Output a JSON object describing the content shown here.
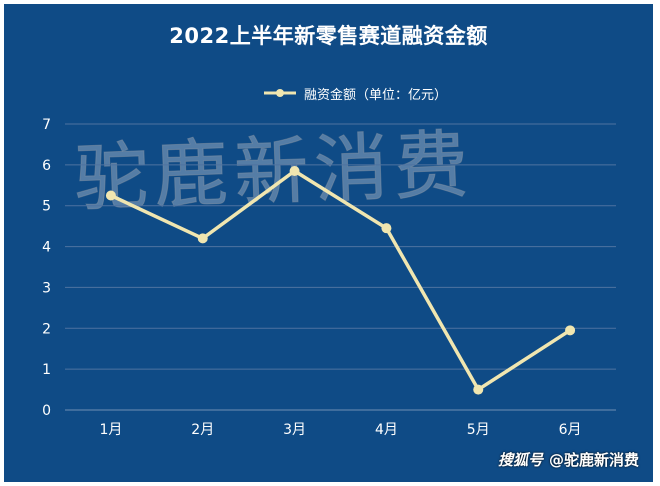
{
  "chart_data": {
    "type": "line",
    "title": "2022上半年新零售赛道融资金额",
    "categories": [
      "1月",
      "2月",
      "3月",
      "4月",
      "5月",
      "6月"
    ],
    "series": [
      {
        "name": "融资金额（单位：亿元）",
        "values": [
          5.25,
          4.2,
          5.85,
          4.45,
          0.5,
          1.95
        ]
      }
    ],
    "ylim": [
      0,
      7
    ],
    "yticks": [
      "0",
      "1",
      "2",
      "3",
      "4",
      "5",
      "6",
      "7"
    ],
    "grid": true,
    "legend_position": "top-center",
    "line_color": "#f0e6b0",
    "background_color": "#0f4b86"
  },
  "watermark": "驼鹿新消费",
  "footer": {
    "logo": "搜狐号",
    "text": "@驼鹿新消费"
  }
}
